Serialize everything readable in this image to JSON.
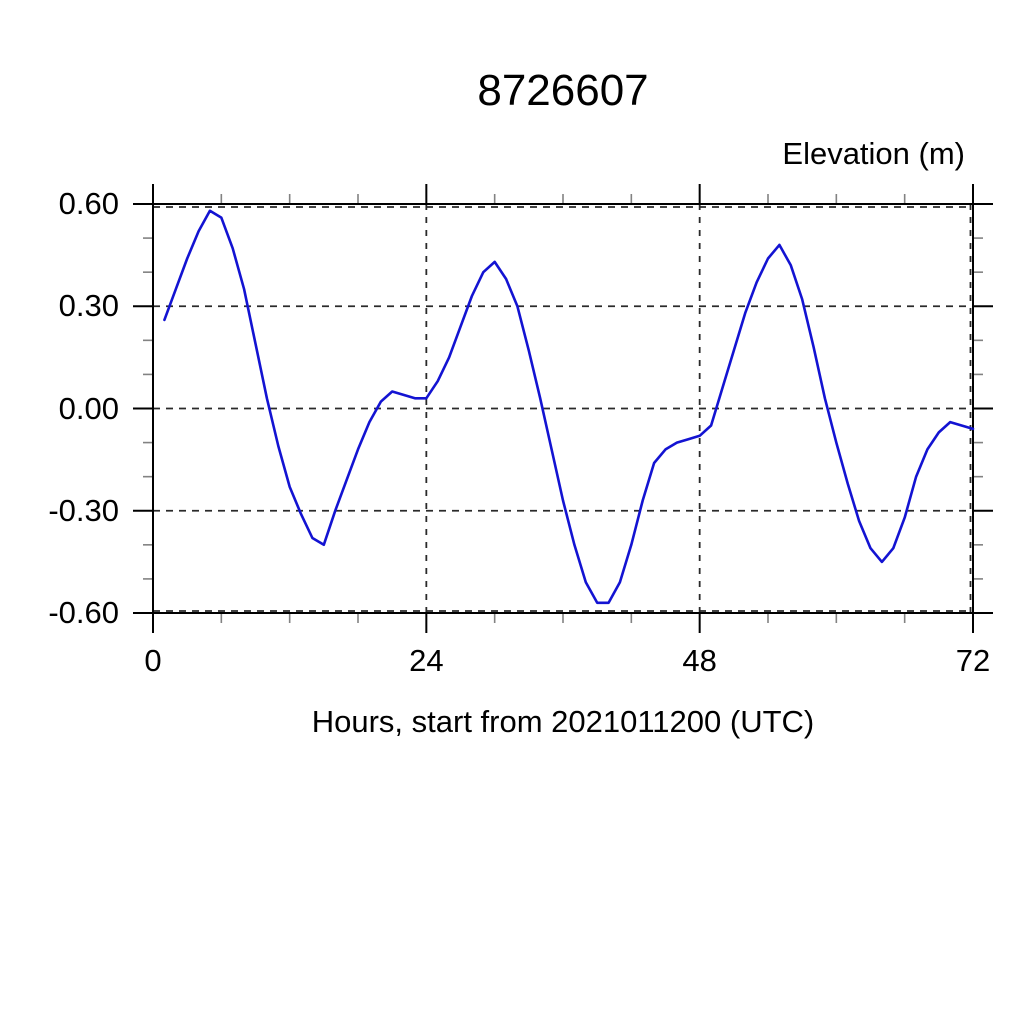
{
  "title": "8726607",
  "y_axis_title": "Elevation (m)",
  "x_axis_title": "Hours, start from 2021011200 (UTC)",
  "chart_data": {
    "type": "line",
    "title": "8726607",
    "xlabel": "Hours, start from 2021011200 (UTC)",
    "ylabel": "Elevation (m)",
    "xlim": [
      0,
      72
    ],
    "ylim": [
      -0.6,
      0.6
    ],
    "x_major_ticks": [
      0,
      24,
      48,
      72
    ],
    "x_tick_labels": [
      "0",
      "24",
      "48",
      "72"
    ],
    "x_minor_tick_interval": 6,
    "y_major_ticks": [
      0.6,
      0.3,
      0.0,
      -0.3,
      -0.6
    ],
    "y_tick_labels": [
      "0.60",
      "0.30",
      "0.00",
      "-0.30",
      "-0.60"
    ],
    "y_minor_tick_interval": 0.1,
    "grid": {
      "style": "dashed",
      "x_lines": [
        24,
        48,
        72
      ],
      "y_lines": [
        0.6,
        0.3,
        0.0,
        -0.3,
        -0.6
      ],
      "color": "#2a2a2a"
    },
    "legend": "none",
    "line_color": "#1313d2",
    "series": [
      {
        "name": "elevation",
        "x": [
          1,
          2,
          3,
          4,
          5,
          6,
          7,
          8,
          9,
          10,
          11,
          12,
          13,
          14,
          15,
          16,
          17,
          18,
          19,
          20,
          21,
          22,
          23,
          24,
          25,
          26,
          27,
          28,
          29,
          30,
          31,
          32,
          33,
          34,
          35,
          36,
          37,
          38,
          39,
          40,
          41,
          42,
          43,
          44,
          45,
          46,
          47,
          48,
          49,
          50,
          51,
          52,
          53,
          54,
          55,
          56,
          57,
          58,
          59,
          60,
          61,
          62,
          63,
          64,
          65,
          66,
          67,
          68,
          69,
          70,
          71,
          72
        ],
        "y": [
          0.26,
          0.35,
          0.44,
          0.52,
          0.58,
          0.56,
          0.47,
          0.35,
          0.19,
          0.03,
          -0.11,
          -0.23,
          -0.31,
          -0.38,
          -0.4,
          -0.3,
          -0.21,
          -0.12,
          -0.04,
          0.02,
          0.05,
          0.04,
          0.03,
          0.03,
          0.08,
          0.15,
          0.24,
          0.33,
          0.4,
          0.43,
          0.38,
          0.3,
          0.17,
          0.03,
          -0.12,
          -0.27,
          -0.4,
          -0.51,
          -0.57,
          -0.57,
          -0.51,
          -0.4,
          -0.27,
          -0.16,
          -0.12,
          -0.1,
          -0.09,
          -0.08,
          -0.05,
          0.06,
          0.17,
          0.28,
          0.37,
          0.44,
          0.48,
          0.42,
          0.32,
          0.18,
          0.03,
          -0.1,
          -0.22,
          -0.33,
          -0.41,
          -0.45,
          -0.41,
          -0.32,
          -0.2,
          -0.12,
          -0.07,
          -0.04,
          -0.05,
          -0.06
        ]
      }
    ]
  }
}
